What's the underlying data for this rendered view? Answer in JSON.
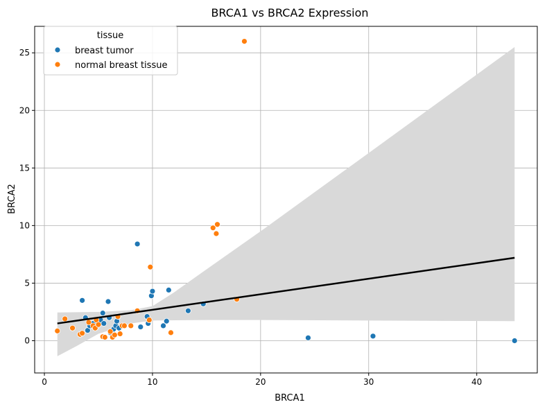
{
  "chart_data": {
    "type": "scatter",
    "title": "BRCA1 vs BRCA2 Expression",
    "xlabel": "BRCA1",
    "ylabel": "BRCA2",
    "xlim": [
      -0.9,
      45.6
    ],
    "ylim": [
      -2.8,
      27.3
    ],
    "xticks": [
      0,
      10,
      20,
      30,
      40
    ],
    "yticks": [
      0,
      5,
      10,
      15,
      20,
      25
    ],
    "grid": true,
    "legend": {
      "title": "tissue",
      "placement": "top-left"
    },
    "series": [
      {
        "name": "breast tumor",
        "color": "#1f77b4",
        "points": [
          [
            3.5,
            3.5
          ],
          [
            3.8,
            2.0
          ],
          [
            4.0,
            0.9
          ],
          [
            4.2,
            1.3
          ],
          [
            4.5,
            1.5
          ],
          [
            4.8,
            1.2
          ],
          [
            5.0,
            1.7
          ],
          [
            5.2,
            1.8
          ],
          [
            5.4,
            2.4
          ],
          [
            5.5,
            1.5
          ],
          [
            5.9,
            3.4
          ],
          [
            6.0,
            2.0
          ],
          [
            6.1,
            0.7
          ],
          [
            6.4,
            1.0
          ],
          [
            6.6,
            1.3
          ],
          [
            6.7,
            1.7
          ],
          [
            6.9,
            1.1
          ],
          [
            8.6,
            8.4
          ],
          [
            8.9,
            1.2
          ],
          [
            9.5,
            2.1
          ],
          [
            9.6,
            1.5
          ],
          [
            9.9,
            3.9
          ],
          [
            10.0,
            4.3
          ],
          [
            11.0,
            1.3
          ],
          [
            11.3,
            1.7
          ],
          [
            11.5,
            4.4
          ],
          [
            13.3,
            2.6
          ],
          [
            14.7,
            3.2
          ],
          [
            24.4,
            0.25
          ],
          [
            30.4,
            0.4
          ],
          [
            43.5,
            0.0
          ]
        ]
      },
      {
        "name": "normal breast tissue",
        "color": "#ff7f0e",
        "points": [
          [
            1.2,
            0.85
          ],
          [
            1.9,
            1.9
          ],
          [
            2.6,
            1.1
          ],
          [
            3.3,
            0.55
          ],
          [
            3.5,
            0.65
          ],
          [
            4.1,
            1.6
          ],
          [
            4.5,
            1.3
          ],
          [
            4.7,
            1.1
          ],
          [
            4.8,
            1.8
          ],
          [
            5.0,
            1.4
          ],
          [
            5.4,
            0.35
          ],
          [
            5.6,
            0.3
          ],
          [
            6.1,
            0.8
          ],
          [
            6.3,
            0.3
          ],
          [
            6.5,
            0.5
          ],
          [
            6.8,
            2.1
          ],
          [
            7.0,
            0.6
          ],
          [
            7.2,
            1.3
          ],
          [
            7.4,
            1.3
          ],
          [
            8.0,
            1.3
          ],
          [
            8.6,
            2.6
          ],
          [
            9.7,
            1.8
          ],
          [
            9.8,
            6.4
          ],
          [
            11.7,
            0.7
          ],
          [
            15.6,
            9.8
          ],
          [
            15.9,
            9.3
          ],
          [
            16.0,
            10.1
          ],
          [
            17.8,
            3.6
          ],
          [
            18.5,
            26.0
          ]
        ]
      }
    ],
    "regression": {
      "color": "#000000",
      "ci_color": "#d9d9d9",
      "line": [
        [
          1.2,
          1.5
        ],
        [
          43.5,
          7.2
        ]
      ],
      "ci_upper": [
        [
          1.2,
          2.45
        ],
        [
          5.0,
          2.5
        ],
        [
          8.0,
          2.65
        ],
        [
          10.0,
          3.0
        ],
        [
          12.0,
          4.2
        ],
        [
          15.0,
          6.2
        ],
        [
          20.0,
          9.5
        ],
        [
          30.0,
          16.3
        ],
        [
          43.5,
          25.5
        ]
      ],
      "ci_lower": [
        [
          1.2,
          -1.35
        ],
        [
          3.0,
          -0.45
        ],
        [
          5.0,
          0.6
        ],
        [
          8.0,
          1.5
        ],
        [
          10.0,
          1.75
        ],
        [
          15.0,
          1.8
        ],
        [
          20.0,
          1.8
        ],
        [
          30.0,
          1.75
        ],
        [
          43.5,
          1.7
        ]
      ]
    }
  }
}
